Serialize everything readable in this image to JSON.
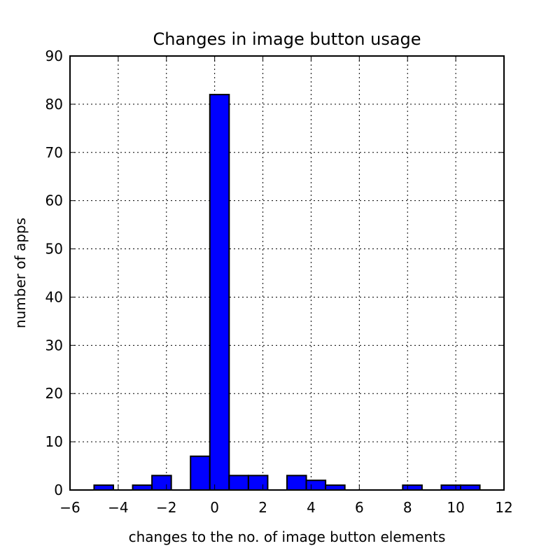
{
  "chart_data": {
    "type": "bar",
    "title": "Changes in image button usage",
    "xlabel": "changes to the no. of image button elements",
    "ylabel": "number of apps",
    "xlim": [
      -6,
      12
    ],
    "ylim": [
      0,
      90
    ],
    "x_ticks": [
      "−6",
      "−4",
      "−2",
      "0",
      "2",
      "4",
      "6",
      "8",
      "10",
      "12"
    ],
    "y_ticks": [
      "0",
      "10",
      "20",
      "30",
      "40",
      "50",
      "60",
      "70",
      "80",
      "90"
    ],
    "grid": true,
    "bar_color": "#0000ff",
    "bins": [
      {
        "x0": -5.0,
        "x1": -4.2,
        "value": 1
      },
      {
        "x0": -3.4,
        "x1": -2.6,
        "value": 1
      },
      {
        "x0": -2.6,
        "x1": -1.8,
        "value": 3
      },
      {
        "x0": -1.0,
        "x1": -0.2,
        "value": 7
      },
      {
        "x0": -0.2,
        "x1": 0.6,
        "value": 82
      },
      {
        "x0": 0.6,
        "x1": 1.4,
        "value": 3
      },
      {
        "x0": 1.4,
        "x1": 2.2,
        "value": 3
      },
      {
        "x0": 3.0,
        "x1": 3.8,
        "value": 3
      },
      {
        "x0": 3.8,
        "x1": 4.6,
        "value": 2
      },
      {
        "x0": 4.6,
        "x1": 5.4,
        "value": 1
      },
      {
        "x0": 7.8,
        "x1": 8.6,
        "value": 1
      },
      {
        "x0": 9.4,
        "x1": 10.2,
        "value": 1
      },
      {
        "x0": 10.2,
        "x1": 11.0,
        "value": 1
      }
    ]
  }
}
